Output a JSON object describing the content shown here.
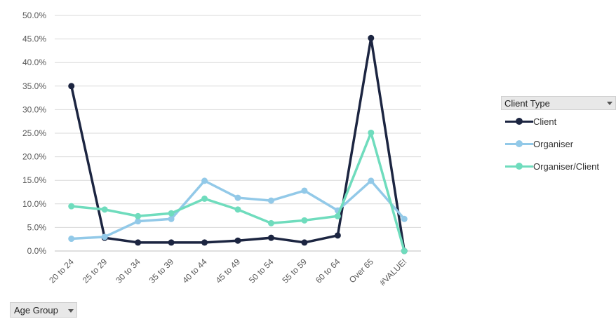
{
  "chart_data": {
    "type": "line",
    "categories": [
      "20 to 24",
      "25 to 29",
      "30 to 34",
      "35 to 39",
      "40 to 44",
      "45 to 49",
      "50 to 54",
      "55 to 59",
      "60 to 64",
      "Over 65",
      "#VALUE!"
    ],
    "series": [
      {
        "name": "Client",
        "color": "#1c2541",
        "values": [
          35.0,
          2.8,
          1.8,
          1.8,
          1.8,
          2.2,
          2.8,
          1.8,
          3.3,
          45.2,
          0.0
        ]
      },
      {
        "name": "Organiser",
        "color": "#92c9e8",
        "values": [
          2.6,
          3.0,
          6.3,
          6.8,
          14.9,
          11.3,
          10.7,
          12.8,
          8.6,
          14.9,
          6.8
        ]
      },
      {
        "name": "Organiser/Client",
        "color": "#6fdcbd",
        "values": [
          9.5,
          8.8,
          7.4,
          8.0,
          11.1,
          8.8,
          5.9,
          6.5,
          7.4,
          25.1,
          0.0
        ]
      }
    ],
    "yticks": [
      "0.0%",
      "5.0%",
      "10.0%",
      "15.0%",
      "20.0%",
      "25.0%",
      "30.0%",
      "35.0%",
      "40.0%",
      "45.0%",
      "50.0%"
    ],
    "ylim": [
      0,
      50
    ],
    "grid": true,
    "legend_position": "right"
  },
  "legend": {
    "title": "Client Type"
  },
  "axis_field": {
    "label": "Age Group"
  }
}
